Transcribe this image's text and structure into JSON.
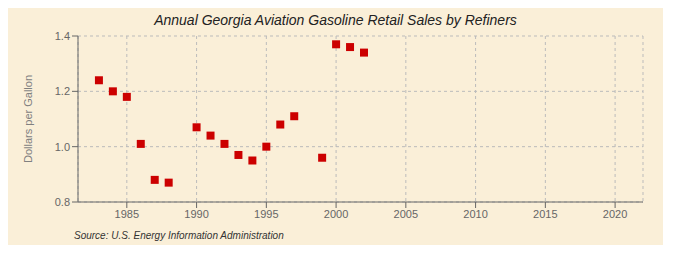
{
  "chart_data": {
    "type": "scatter",
    "title": "Annual Georgia Aviation Gasoline Retail Sales by Refiners",
    "ylabel": "Dollars per Gallon",
    "annotations": [
      "Source: U.S. Energy Information Administration"
    ],
    "x": [
      1983,
      1984,
      1985,
      1986,
      1987,
      1988,
      1990,
      1991,
      1992,
      1993,
      1994,
      1995,
      1996,
      1997,
      1999,
      2000,
      2001,
      2002
    ],
    "values": [
      1.24,
      1.2,
      1.18,
      1.01,
      0.88,
      0.87,
      1.07,
      1.04,
      1.01,
      0.97,
      0.95,
      1.0,
      1.08,
      1.11,
      0.96,
      1.37,
      1.36,
      1.34
    ],
    "color": "#cc0000",
    "marker": "square",
    "xlim": [
      1981.5,
      2022
    ],
    "ylim": [
      0.8,
      1.4
    ],
    "xticks": [
      1985,
      1990,
      1995,
      2000,
      2005,
      2010,
      2015,
      2020
    ],
    "yticks": [
      0.8,
      {
        "value": 1.0,
        "label": "1.0"
      },
      1.2,
      1.4
    ],
    "grid": true
  }
}
